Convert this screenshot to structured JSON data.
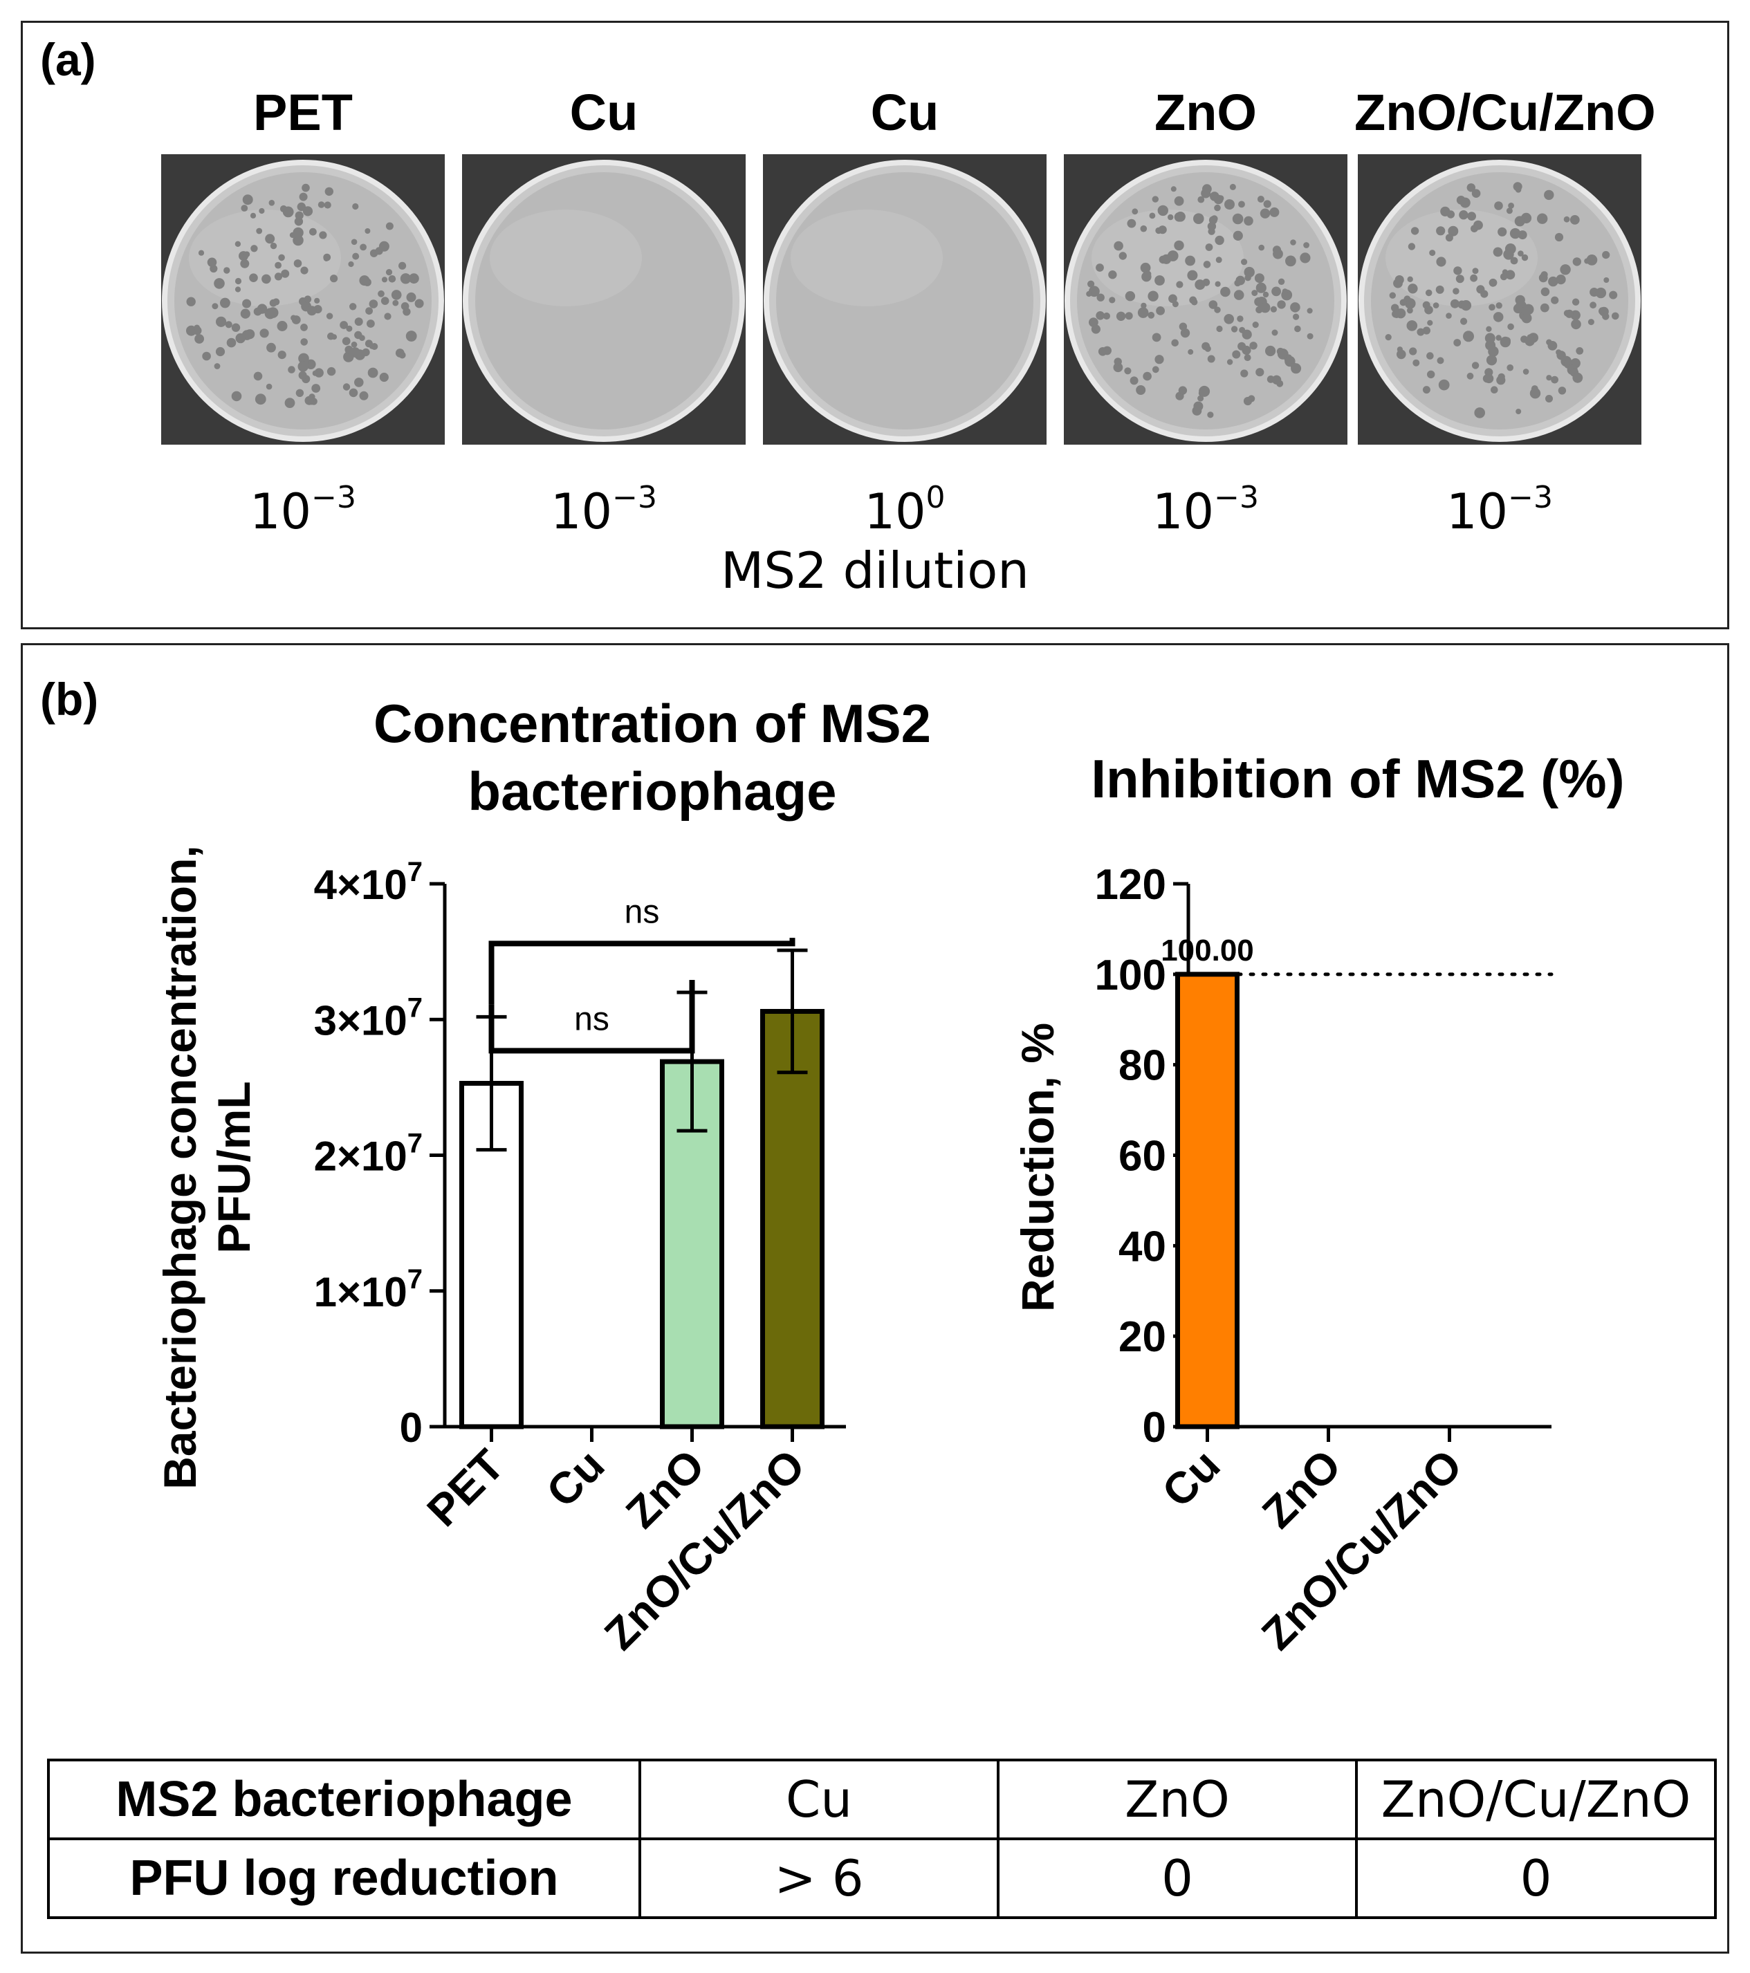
{
  "panel_a": {
    "label": "(a)",
    "dishes": [
      {
        "title": "PET",
        "dilution_base": "10",
        "dilution_exp": "−3",
        "plaques": "many"
      },
      {
        "title": "Cu",
        "dilution_base": "10",
        "dilution_exp": "−3",
        "plaques": "none"
      },
      {
        "title": "Cu",
        "dilution_base": "10",
        "dilution_exp": "0",
        "plaques": "none"
      },
      {
        "title": "ZnO",
        "dilution_base": "10",
        "dilution_exp": "−3",
        "plaques": "many"
      },
      {
        "title": "ZnO/Cu/ZnO",
        "dilution_base": "10",
        "dilution_exp": "−3",
        "plaques": "many"
      }
    ],
    "axis_label": "MS2 dilution"
  },
  "panel_b": {
    "label": "(b)"
  },
  "chart_data": [
    {
      "type": "bar",
      "title": "Concentration of MS2 bacteriophage",
      "title_lines": [
        "Concentration of MS2",
        "bacteriophage"
      ],
      "ylabel_lines": [
        "Bacteriophage concentration,",
        "PFU/mL"
      ],
      "xlabel": "",
      "categories": [
        "PET",
        "Cu",
        "ZnO",
        "ZnO/Cu/ZnO"
      ],
      "values": [
        25300000,
        0,
        26900000,
        30600000
      ],
      "errors": [
        4900000,
        0,
        5100000,
        4500000
      ],
      "colors": [
        "#ffffff",
        "#ffffff",
        "#a8deb1",
        "#6b6a0a"
      ],
      "ylim": [
        0,
        40000000
      ],
      "yticks": [
        0,
        10000000,
        20000000,
        30000000,
        40000000
      ],
      "ytick_labels": [
        {
          "base": "0",
          "exp": ""
        },
        {
          "base": "1×10",
          "exp": "7"
        },
        {
          "base": "2×10",
          "exp": "7"
        },
        {
          "base": "3×10",
          "exp": "7"
        },
        {
          "base": "4×10",
          "exp": "7"
        }
      ],
      "annotations": [
        {
          "from": "PET",
          "to": "ZnO",
          "text": "ns"
        },
        {
          "from": "PET",
          "to": "ZnO/Cu/ZnO",
          "text": "ns"
        }
      ],
      "grid": false
    },
    {
      "type": "bar",
      "title": "Inhibition of MS2 (%)",
      "ylabel": "Reduction, %",
      "xlabel": "",
      "categories": [
        "Cu",
        "ZnO",
        "ZnO/Cu/ZnO"
      ],
      "values": [
        100.0,
        0,
        0
      ],
      "value_labels": [
        "100.00",
        "",
        ""
      ],
      "colors": [
        "#ff7f00",
        "#ff7f00",
        "#ff7f00"
      ],
      "ylim": [
        0,
        120
      ],
      "yticks": [
        0,
        20,
        40,
        60,
        80,
        100,
        120
      ],
      "reference_line": 100,
      "grid": false
    }
  ],
  "table": {
    "rows": [
      [
        "MS2 bacteriophage",
        "Cu",
        "ZnO",
        "ZnO/Cu/ZnO"
      ],
      [
        "PFU log reduction",
        "> 6",
        "0",
        "0"
      ]
    ]
  }
}
